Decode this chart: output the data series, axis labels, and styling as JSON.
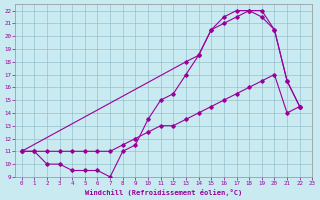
{
  "xlabel": "Windchill (Refroidissement éolien,°C)",
  "bg_color": "#c8eaf0",
  "line_color": "#990099",
  "grid_color": "#8ab8c8",
  "xlim": [
    -0.5,
    23
  ],
  "ylim": [
    9,
    22.5
  ],
  "xticks": [
    0,
    1,
    2,
    3,
    4,
    5,
    6,
    7,
    8,
    9,
    10,
    11,
    12,
    13,
    14,
    15,
    16,
    17,
    18,
    19,
    20,
    21,
    22,
    23
  ],
  "yticks": [
    9,
    10,
    11,
    12,
    13,
    14,
    15,
    16,
    17,
    18,
    19,
    20,
    21,
    22
  ],
  "line1_x": [
    0,
    1,
    2,
    3,
    4,
    5,
    6,
    7,
    8,
    9,
    10,
    11,
    12,
    13,
    14,
    15,
    16,
    17,
    18,
    19,
    20,
    21,
    22
  ],
  "line1_y": [
    11,
    11,
    10,
    10,
    9.5,
    9.5,
    9.5,
    9,
    11,
    11.5,
    13.5,
    15,
    15.5,
    17,
    18.5,
    20.5,
    21.5,
    22,
    22,
    21.5,
    20.5,
    16.5,
    14.5
  ],
  "line2_x": [
    0,
    13,
    14,
    15,
    16,
    17,
    18,
    19,
    20,
    21,
    22
  ],
  "line2_y": [
    11,
    18,
    18.5,
    20.5,
    21,
    21.5,
    22,
    22,
    20.5,
    16.5,
    14.5
  ],
  "line3_x": [
    0,
    1,
    2,
    3,
    4,
    5,
    6,
    7,
    8,
    9,
    10,
    11,
    12,
    13,
    14,
    15,
    16,
    17,
    18,
    19,
    20,
    21,
    22
  ],
  "line3_y": [
    11,
    11,
    11,
    11,
    11,
    11,
    11,
    11,
    11.5,
    12,
    12.5,
    13,
    13,
    13.5,
    14,
    14.5,
    15,
    15.5,
    16,
    16.5,
    17,
    14,
    14.5
  ],
  "marker": "D",
  "markersize": 1.8,
  "linewidth": 0.8,
  "tick_fontsize": 4.2,
  "xlabel_fontsize": 5.0
}
